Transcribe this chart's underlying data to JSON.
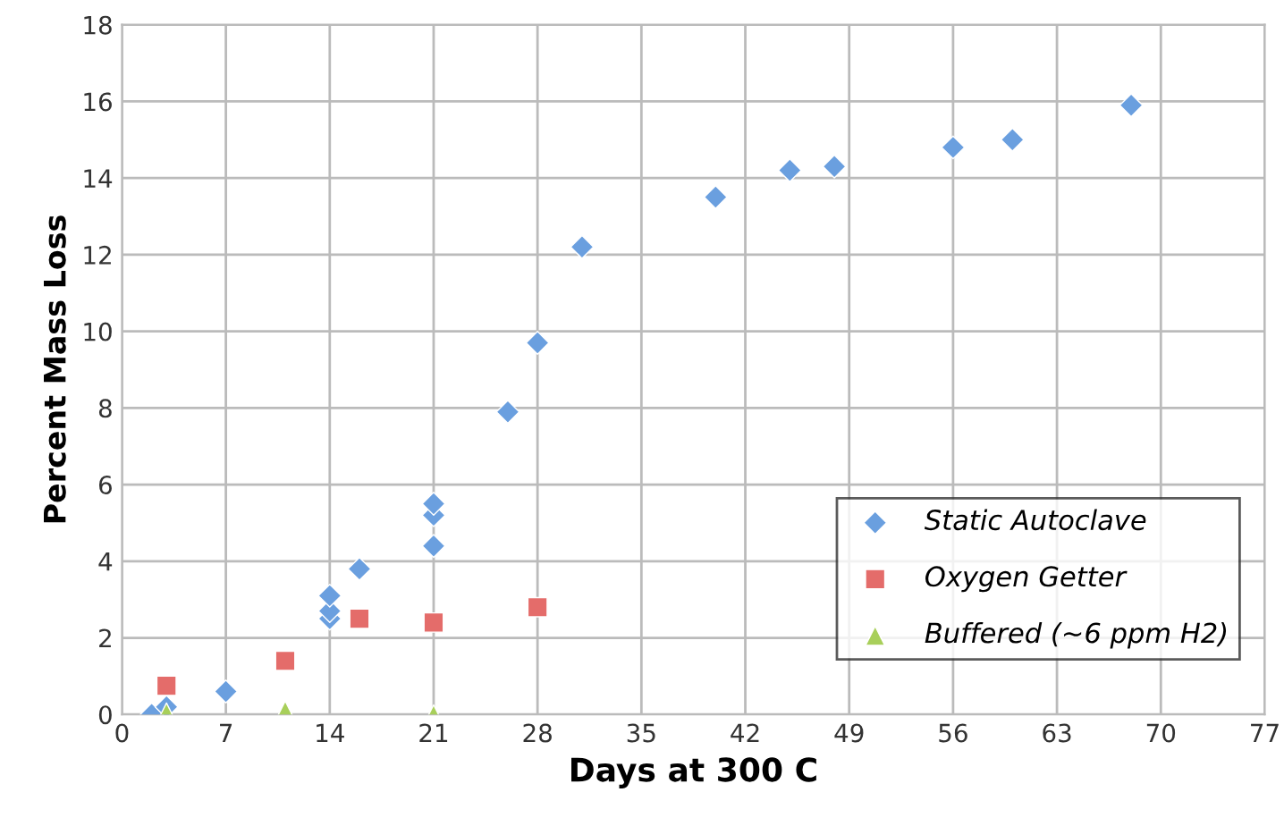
{
  "chart_data": {
    "type": "scatter",
    "xlabel": "Days at 300 C",
    "ylabel": "Percent Mass Loss",
    "xlim": [
      0,
      77
    ],
    "xticks": [
      0,
      7,
      14,
      21,
      28,
      35,
      42,
      49,
      56,
      63,
      70,
      77
    ],
    "ylim": [
      0,
      18
    ],
    "yticks": [
      0,
      2,
      4,
      6,
      8,
      10,
      12,
      14,
      16,
      18
    ],
    "grid": true,
    "legend": "bottom right",
    "series": [
      {
        "name": "Static Autoclave",
        "color": "#6a9fdf",
        "marker": "diamond",
        "x": [
          2,
          3,
          7,
          14,
          14,
          14,
          16,
          21,
          21,
          21,
          26,
          28,
          31,
          40,
          45,
          48,
          56,
          60,
          68
        ],
        "values": [
          0,
          0.2,
          0.6,
          2.5,
          2.7,
          3.1,
          3.8,
          4.4,
          5.2,
          5.5,
          7.9,
          9.7,
          12.2,
          13.5,
          14.2,
          14.3,
          14.8,
          15.0,
          15.9
        ]
      },
      {
        "name": "Oxygen Getter",
        "color": "#e46c6a",
        "marker": "square",
        "x": [
          3,
          11,
          16,
          21,
          28
        ],
        "values": [
          0.75,
          1.4,
          2.5,
          2.4,
          2.8
        ]
      },
      {
        "name": "Buffered (~6 ppm H2)",
        "color": "#a8cf5a",
        "marker": "triangle",
        "x": [
          3,
          11,
          21
        ],
        "values": [
          0.05,
          0.1,
          0.0
        ]
      }
    ]
  }
}
